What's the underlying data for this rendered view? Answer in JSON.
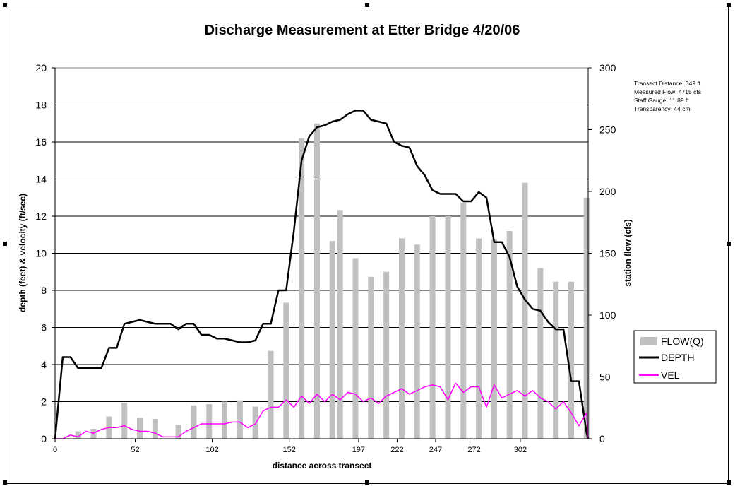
{
  "chart_data": {
    "type": "bar",
    "title": "Discharge Measurement at Etter Bridge 4/20/06",
    "xlabel": "distance across transect",
    "ylabel": "depth (feet) & velocity (ft/sec)",
    "y2label": "station flow (cfs)",
    "ylim": [
      0,
      20
    ],
    "y2lim": [
      0,
      300
    ],
    "xlim": [
      0,
      346
    ],
    "x_tick_labels": [
      "0",
      "52",
      "102",
      "152",
      "197",
      "222",
      "247",
      "272",
      "302"
    ],
    "x_tick_positions": [
      0,
      52,
      102,
      152,
      197,
      222,
      247,
      272,
      302
    ],
    "y_ticks": [
      0,
      2,
      4,
      6,
      8,
      10,
      12,
      14,
      16,
      18,
      20
    ],
    "y2_ticks": [
      0,
      50,
      100,
      150,
      200,
      250,
      300
    ],
    "grid": true,
    "legend_position": "right",
    "annotations": [
      "Transect Distance: 349 ft",
      "Measured Flow: 4715 cfs",
      "Staff Gauge: 11.89 ft",
      "Transparency: 44 cm"
    ],
    "colors": {
      "flow": "#c0c0c0",
      "depth": "#000000",
      "vel": "#ff00ff"
    },
    "series": [
      {
        "name": "FLOW(Q)",
        "axis": "secondary",
        "kind": "bar",
        "x": [
          15,
          25,
          35,
          45,
          55,
          65,
          80,
          90,
          100,
          110,
          120,
          130,
          140,
          150,
          160,
          170,
          180,
          185,
          195,
          205,
          215,
          225,
          235,
          245,
          255,
          265,
          275,
          285,
          295,
          305,
          315,
          325,
          335,
          345
        ],
        "values": [
          6,
          8,
          18,
          29,
          17,
          16,
          11,
          27,
          28,
          30,
          31,
          26,
          71,
          110,
          243,
          255,
          160,
          185,
          146,
          131,
          135,
          162,
          157,
          180,
          180,
          191,
          162,
          161,
          168,
          207,
          138,
          127,
          127,
          195
        ]
      },
      {
        "name": "DEPTH",
        "axis": "primary",
        "kind": "line",
        "x": [
          0,
          5,
          10,
          15,
          20,
          25,
          30,
          35,
          40,
          45,
          50,
          55,
          60,
          65,
          70,
          75,
          80,
          85,
          90,
          95,
          100,
          105,
          110,
          115,
          120,
          125,
          130,
          135,
          140,
          145,
          150,
          155,
          160,
          165,
          170,
          175,
          180,
          185,
          190,
          195,
          200,
          205,
          210,
          215,
          220,
          225,
          230,
          235,
          240,
          245,
          250,
          255,
          260,
          265,
          270,
          275,
          280,
          285,
          290,
          295,
          300,
          305,
          310,
          315,
          320,
          325,
          330,
          335,
          340,
          345,
          346
        ],
        "values": [
          0,
          4.4,
          4.4,
          3.8,
          3.8,
          3.8,
          3.8,
          4.9,
          4.9,
          6.2,
          6.3,
          6.4,
          6.3,
          6.2,
          6.2,
          6.2,
          5.9,
          6.2,
          6.2,
          5.6,
          5.6,
          5.4,
          5.4,
          5.3,
          5.2,
          5.2,
          5.3,
          6.2,
          6.2,
          8,
          8,
          11.2,
          15,
          16.3,
          16.8,
          16.9,
          17.1,
          17.2,
          17.5,
          17.7,
          17.7,
          17.2,
          17.1,
          17.0,
          16.0,
          15.8,
          15.7,
          14.7,
          14.2,
          13.4,
          13.2,
          13.2,
          13.2,
          12.8,
          12.8,
          13.3,
          13.0,
          10.6,
          10.6,
          9.8,
          8.2,
          7.5,
          7.0,
          6.9,
          6.3,
          5.9,
          5.9,
          3.1,
          3.1,
          0.3,
          0
        ]
      },
      {
        "name": "VEL",
        "axis": "primary",
        "kind": "line",
        "x": [
          0,
          5,
          10,
          15,
          20,
          25,
          30,
          35,
          40,
          45,
          50,
          55,
          60,
          65,
          70,
          75,
          80,
          85,
          90,
          95,
          100,
          105,
          110,
          115,
          120,
          125,
          130,
          135,
          140,
          145,
          150,
          155,
          160,
          165,
          170,
          175,
          180,
          185,
          190,
          195,
          200,
          205,
          210,
          215,
          220,
          225,
          230,
          235,
          240,
          245,
          250,
          255,
          260,
          265,
          270,
          275,
          280,
          285,
          290,
          295,
          300,
          305,
          310,
          315,
          320,
          325,
          330,
          335,
          340,
          345,
          346
        ],
        "values": [
          0,
          0,
          0.2,
          0.1,
          0.4,
          0.3,
          0.5,
          0.6,
          0.6,
          0.7,
          0.5,
          0.4,
          0.4,
          0.3,
          0.1,
          0.1,
          0.1,
          0.4,
          0.6,
          0.8,
          0.8,
          0.8,
          0.8,
          0.9,
          0.9,
          0.6,
          0.8,
          1.5,
          1.7,
          1.7,
          2.1,
          1.7,
          2.3,
          1.9,
          2.4,
          2.0,
          2.4,
          2.1,
          2.5,
          2.4,
          2.0,
          2.2,
          1.9,
          2.3,
          2.5,
          2.7,
          2.4,
          2.6,
          2.8,
          2.9,
          2.8,
          2.1,
          3.0,
          2.5,
          2.8,
          2.8,
          1.7,
          2.9,
          2.2,
          2.4,
          2.6,
          2.3,
          2.6,
          2.2,
          2.0,
          1.6,
          2.0,
          1.4,
          0.7,
          1.4,
          0
        ]
      }
    ]
  }
}
